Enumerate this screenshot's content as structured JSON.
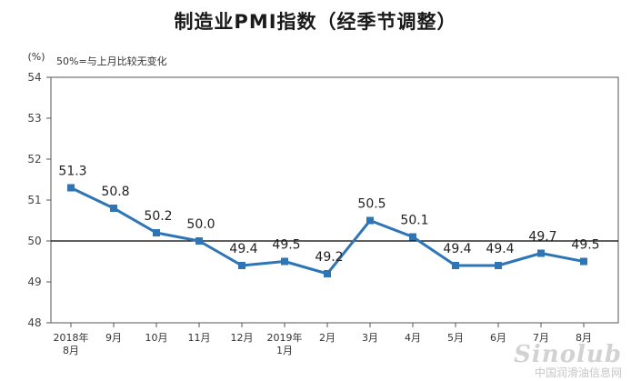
{
  "chart_data": {
    "type": "line",
    "title": "制造业PMI指数（经季节调整）",
    "ylabel": "(%)",
    "annotation": "50%=与上月比较无变化",
    "ylim": [
      48,
      54
    ],
    "yticks": [
      "54",
      "53",
      "52",
      "51",
      "50",
      "49",
      "48"
    ],
    "reference_line": 50,
    "categories": [
      "2018年\n8月",
      "9月",
      "10月",
      "11月",
      "12月",
      "2019年\n1月",
      "2月",
      "3月",
      "4月",
      "5月",
      "6月",
      "7月",
      "8月"
    ],
    "series": [
      {
        "name": "制造业PMI",
        "values": [
          51.3,
          50.8,
          50.2,
          50.0,
          49.4,
          49.5,
          49.2,
          50.5,
          50.1,
          49.4,
          49.4,
          49.7,
          49.5
        ],
        "labels": [
          "51.3",
          "50.8",
          "50.2",
          "50.0",
          "49.4",
          "49.5",
          "49.2",
          "50.5",
          "50.1",
          "49.4",
          "49.4",
          "49.7",
          "49.5"
        ]
      }
    ],
    "colors": {
      "line": "#2e75b6",
      "marker": "#2e75b6",
      "reference": "#000000",
      "axis": "#555555"
    }
  },
  "watermark": {
    "logo": "Sinolub",
    "text": "中国润滑油信息网"
  }
}
